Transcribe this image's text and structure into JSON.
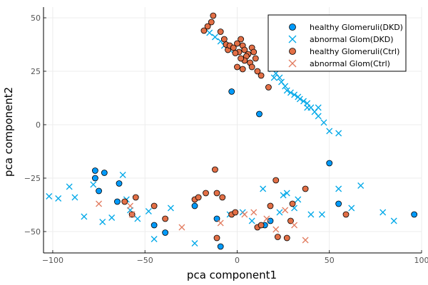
{
  "chart_data": {
    "type": "scatter",
    "xlabel": "pca component1",
    "ylabel": "pca component2",
    "xlim": [
      -105,
      100
    ],
    "ylim": [
      -60,
      55
    ],
    "xticks": [
      -100,
      -50,
      0,
      50,
      100
    ],
    "yticks": [
      -50,
      -25,
      0,
      25,
      50
    ],
    "xtick_labels": [
      "−100",
      "−50",
      "0",
      "50",
      "100"
    ],
    "ytick_labels": [
      "−50",
      "−25",
      "0",
      "25",
      "50"
    ],
    "grid": true,
    "legend_position": "top-right",
    "series": [
      {
        "name": "healthy Glomeruli(DKD)",
        "marker": "circle",
        "color": "#009AFA",
        "points": [
          [
            -77,
            -21.5
          ],
          [
            -72,
            -22.5
          ],
          [
            -77,
            -25
          ],
          [
            -75,
            -31
          ],
          [
            -64,
            -27.5
          ],
          [
            -65,
            -36
          ],
          [
            -45,
            -47
          ],
          [
            -39,
            -50.5
          ],
          [
            -23,
            -38
          ],
          [
            -11,
            -44
          ],
          [
            -9,
            -57
          ],
          [
            -3,
            15.5
          ],
          [
            12,
            5
          ],
          [
            15,
            -47
          ],
          [
            18,
            -45
          ],
          [
            50,
            -18
          ],
          [
            55,
            -37
          ],
          [
            96,
            -42
          ]
        ]
      },
      {
        "name": "abnormal Glom(DKD)",
        "marker": "cross",
        "color": "#00A8E8",
        "points": [
          [
            -15,
            43
          ],
          [
            -12,
            41
          ],
          [
            -9,
            39
          ],
          [
            -7,
            37
          ],
          [
            -4,
            35
          ],
          [
            0,
            34
          ],
          [
            19,
            26
          ],
          [
            21,
            24
          ],
          [
            23,
            22
          ],
          [
            24,
            20
          ],
          [
            26,
            18
          ],
          [
            27,
            16
          ],
          [
            29,
            15
          ],
          [
            31,
            14
          ],
          [
            33,
            13
          ],
          [
            34,
            12
          ],
          [
            36,
            11
          ],
          [
            38,
            10
          ],
          [
            38,
            8
          ],
          [
            40,
            8
          ],
          [
            42,
            6
          ],
          [
            44,
            4
          ],
          [
            44,
            8
          ],
          [
            47,
            1
          ],
          [
            50,
            -3
          ],
          [
            55,
            -4
          ],
          [
            20,
            22
          ],
          [
            -102,
            -33.5
          ],
          [
            -97,
            -34.5
          ],
          [
            -91,
            -29
          ],
          [
            -88,
            -34
          ],
          [
            -83,
            -43
          ],
          [
            -78,
            -28
          ],
          [
            -73,
            -45.5
          ],
          [
            -68,
            -43.5
          ],
          [
            -62,
            -23.5
          ],
          [
            -60,
            -35
          ],
          [
            -58,
            -40
          ],
          [
            -54,
            -44
          ],
          [
            -48,
            -40.5
          ],
          [
            -45,
            -53.5
          ],
          [
            -36,
            -39
          ],
          [
            -23,
            -55.5
          ],
          [
            -4,
            -42
          ],
          [
            3,
            -41
          ],
          [
            8,
            -45
          ],
          [
            14,
            -30
          ],
          [
            23,
            -41
          ],
          [
            25,
            -33
          ],
          [
            27,
            -32
          ],
          [
            31,
            -39
          ],
          [
            33,
            -35
          ],
          [
            40,
            -42
          ],
          [
            46,
            -42
          ],
          [
            55,
            -30
          ],
          [
            62,
            -39
          ],
          [
            67,
            -28.5
          ],
          [
            79,
            -41
          ],
          [
            85,
            -45
          ]
        ]
      },
      {
        "name": "healthy Glomeruli(Ctrl)",
        "marker": "circle",
        "color": "#E26F46",
        "points": [
          [
            -13,
            51
          ],
          [
            -14,
            48
          ],
          [
            -16,
            46
          ],
          [
            -18,
            44
          ],
          [
            -9,
            43.5
          ],
          [
            -7,
            40
          ],
          [
            -6,
            37.5
          ],
          [
            -5,
            35
          ],
          [
            -4,
            37
          ],
          [
            -2,
            36
          ],
          [
            0,
            38
          ],
          [
            2,
            40
          ],
          [
            3,
            37
          ],
          [
            1,
            34
          ],
          [
            4,
            35
          ],
          [
            6,
            33
          ],
          [
            8,
            36
          ],
          [
            9,
            34
          ],
          [
            10,
            31
          ],
          [
            7,
            29
          ],
          [
            5,
            32
          ],
          [
            4,
            30
          ],
          [
            2,
            31
          ],
          [
            0,
            27
          ],
          [
            3,
            26
          ],
          [
            8,
            27
          ],
          [
            11,
            25
          ],
          [
            13,
            23
          ],
          [
            -1,
            33.5
          ],
          [
            17,
            17.5
          ],
          [
            -23,
            -35
          ],
          [
            -21,
            -34
          ],
          [
            -17,
            -32
          ],
          [
            -12,
            -21
          ],
          [
            -11,
            -32
          ],
          [
            -8,
            -34
          ],
          [
            -61,
            -36
          ],
          [
            -55,
            -34
          ],
          [
            -57,
            -42
          ],
          [
            -45,
            -38
          ],
          [
            -39,
            -44
          ],
          [
            -3,
            -42
          ],
          [
            -1,
            -41
          ],
          [
            -11,
            -53
          ],
          [
            11,
            -48
          ],
          [
            13,
            -47
          ],
          [
            18,
            -38
          ],
          [
            21,
            -26
          ],
          [
            22,
            -52.5
          ],
          [
            27,
            -53
          ],
          [
            29,
            -45
          ],
          [
            30,
            -37
          ],
          [
            37,
            -30
          ],
          [
            59,
            -42
          ]
        ]
      },
      {
        "name": "abnormal Glom(Ctrl)",
        "marker": "cross",
        "color": "#E27C60",
        "points": [
          [
            -75,
            -37
          ],
          [
            -58,
            -38
          ],
          [
            -57,
            -42
          ],
          [
            4,
            -42
          ],
          [
            9,
            -41
          ],
          [
            16,
            -44
          ],
          [
            26,
            -40
          ],
          [
            37,
            -54
          ],
          [
            -30,
            -48
          ],
          [
            31,
            -47
          ],
          [
            -9,
            -46
          ],
          [
            21,
            -49
          ]
        ]
      }
    ]
  }
}
